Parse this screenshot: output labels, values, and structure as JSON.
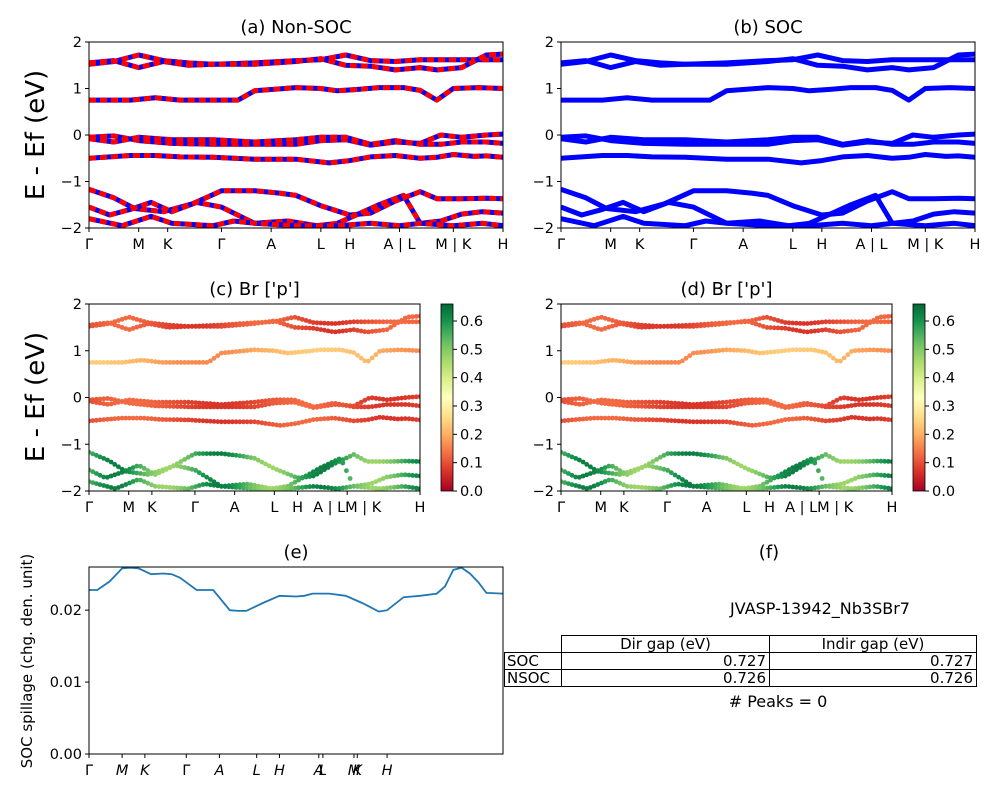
{
  "chart_data": [
    {
      "id": "a",
      "type": "line",
      "title": "(a) Non-SOC",
      "ylabel": "$E - E_f$ (eV)",
      "ylim": [
        -2,
        2
      ],
      "yticks": [
        -2,
        -1,
        0,
        1,
        2
      ],
      "kpath_labels": [
        "Γ",
        "M",
        "K",
        "Γ",
        "A",
        "L",
        "H",
        "A | L",
        "M | K",
        "H"
      ],
      "colors": {
        "up": "#0000ff",
        "down": "#ff0000"
      },
      "bands": [
        {
          "name": "b1",
          "x": [
            0,
            0.06,
            0.11,
            0.18,
            0.25,
            0.32,
            0.4,
            0.46,
            0.5,
            0.56,
            0.63,
            0.68,
            0.74,
            0.8,
            0.84,
            0.9,
            0.96,
            1.0
          ],
          "values": [
            -1.17,
            -1.35,
            -1.58,
            -1.65,
            -1.48,
            -1.2,
            -1.2,
            -1.25,
            -1.3,
            -1.52,
            -1.72,
            -1.68,
            -1.42,
            -1.22,
            -1.37,
            -1.37,
            -1.36,
            -1.37
          ]
        },
        {
          "name": "b2",
          "x": [
            0,
            0.05,
            0.1,
            0.15,
            0.2,
            0.26,
            0.32,
            0.4,
            0.48,
            0.55,
            0.6,
            0.65,
            0.7,
            0.76,
            0.8,
            0.85,
            0.9,
            0.95,
            1.0
          ],
          "values": [
            -1.55,
            -1.72,
            -1.6,
            -1.45,
            -1.65,
            -1.45,
            -1.55,
            -1.9,
            -1.85,
            -1.95,
            -1.9,
            -1.7,
            -1.5,
            -1.3,
            -1.9,
            -1.85,
            -1.7,
            -1.65,
            -1.68
          ]
        },
        {
          "name": "b3",
          "x": [
            0,
            0.08,
            0.15,
            0.2,
            0.3,
            0.35,
            0.4,
            0.5,
            0.6,
            0.68,
            0.75,
            0.8,
            0.88,
            0.95,
            1.0
          ],
          "values": [
            -1.8,
            -1.95,
            -1.75,
            -1.9,
            -1.95,
            -1.85,
            -1.9,
            -1.95,
            -1.95,
            -1.9,
            -1.95,
            -1.9,
            -1.95,
            -1.9,
            -1.95
          ]
        },
        {
          "name": "b4",
          "x": [
            0,
            0.1,
            0.16,
            0.22,
            0.3,
            0.4,
            0.5,
            0.58,
            0.63,
            0.68,
            0.74,
            0.8,
            0.84,
            0.88,
            0.93,
            0.96,
            1.0
          ],
          "values": [
            -0.5,
            -0.44,
            -0.44,
            -0.47,
            -0.48,
            -0.52,
            -0.52,
            -0.6,
            -0.55,
            -0.47,
            -0.44,
            -0.5,
            -0.48,
            -0.42,
            -0.46,
            -0.45,
            -0.48
          ]
        },
        {
          "name": "b5",
          "x": [
            0,
            0.06,
            0.12,
            0.2,
            0.3,
            0.4,
            0.5,
            0.56,
            0.62,
            0.68,
            0.74,
            0.8,
            0.85,
            0.9,
            0.96,
            1.0
          ],
          "values": [
            -0.05,
            -0.02,
            -0.12,
            -0.18,
            -0.2,
            -0.2,
            -0.2,
            -0.12,
            -0.1,
            -0.22,
            -0.15,
            -0.18,
            0.0,
            -0.05,
            0.0,
            0.02
          ]
        },
        {
          "name": "b6",
          "x": [
            0,
            0.06,
            0.12,
            0.2,
            0.3,
            0.4,
            0.5,
            0.56,
            0.62,
            0.68,
            0.74,
            0.8,
            0.85,
            0.9,
            0.96,
            1.0
          ],
          "values": [
            -0.08,
            -0.15,
            -0.05,
            -0.1,
            -0.1,
            -0.15,
            -0.1,
            -0.05,
            -0.05,
            -0.2,
            -0.12,
            -0.2,
            -0.2,
            -0.15,
            -0.15,
            -0.18
          ]
        },
        {
          "name": "b7",
          "x": [
            0,
            0.1,
            0.16,
            0.22,
            0.3,
            0.36,
            0.4,
            0.5,
            0.56,
            0.6,
            0.65,
            0.7,
            0.76,
            0.8,
            0.84,
            0.88,
            0.94,
            1.0
          ],
          "values": [
            0.75,
            0.75,
            0.8,
            0.75,
            0.75,
            0.75,
            0.95,
            1.02,
            1.0,
            0.95,
            0.98,
            1.02,
            1.02,
            0.96,
            0.75,
            1.0,
            1.02,
            1.0
          ]
        },
        {
          "name": "b8",
          "x": [
            0,
            0.06,
            0.12,
            0.18,
            0.24,
            0.3,
            0.4,
            0.5,
            0.56,
            0.62,
            0.68,
            0.74,
            0.8,
            0.84,
            0.9,
            0.96,
            1.0
          ],
          "values": [
            1.52,
            1.58,
            1.72,
            1.6,
            1.55,
            1.52,
            1.55,
            1.6,
            1.62,
            1.72,
            1.6,
            1.58,
            1.62,
            1.62,
            1.62,
            1.62,
            1.62
          ]
        },
        {
          "name": "b9",
          "x": [
            0,
            0.06,
            0.12,
            0.18,
            0.24,
            0.3,
            0.4,
            0.5,
            0.56,
            0.62,
            0.68,
            0.74,
            0.8,
            0.84,
            0.9,
            0.96,
            1.0
          ],
          "values": [
            1.55,
            1.6,
            1.45,
            1.58,
            1.5,
            1.52,
            1.52,
            1.58,
            1.64,
            1.5,
            1.48,
            1.4,
            1.45,
            1.4,
            1.45,
            1.72,
            1.74
          ]
        }
      ]
    },
    {
      "id": "b",
      "type": "line",
      "title": "(b) SOC",
      "ylim": [
        -2,
        2
      ],
      "yticks": [
        -2,
        -1,
        0,
        1,
        2
      ],
      "kpath_labels": [
        "Γ",
        "M",
        "K",
        "Γ",
        "A",
        "L",
        "H",
        "A | L",
        "M | K",
        "H"
      ],
      "colors": {
        "line": "#0000ff"
      }
    },
    {
      "id": "c",
      "type": "scatter",
      "title": "(c)  Br ['p']",
      "ylabel": "$E - E_f$ (eV)",
      "ylim": [
        -2,
        2
      ],
      "yticks": [
        -2,
        -1,
        0,
        1,
        2
      ],
      "kpath_labels": [
        "Γ",
        "M",
        "K",
        "Γ",
        "A",
        "L",
        "H",
        "A | LM | K",
        "H"
      ],
      "colorbar": {
        "colormap": "RdYlGn",
        "ticks": [
          0.0,
          0.1,
          0.2,
          0.3,
          0.4,
          0.5,
          0.6
        ],
        "range": [
          0,
          0.66
        ]
      }
    },
    {
      "id": "d",
      "type": "scatter",
      "title": "(d) Br ['p']",
      "ylim": [
        -2,
        2
      ],
      "yticks": [
        -2,
        -1,
        0,
        1,
        2
      ],
      "kpath_labels": [
        "Γ",
        "M",
        "K",
        "Γ",
        "A",
        "L",
        "H",
        "A | LM | K",
        "H"
      ],
      "colorbar": {
        "colormap": "RdYlGn",
        "ticks": [
          0.0,
          0.1,
          0.2,
          0.3,
          0.4,
          0.5,
          0.6
        ],
        "range": [
          0,
          0.66
        ]
      }
    },
    {
      "id": "e",
      "type": "line",
      "title": "(e)",
      "ylabel": "SOC spillage (chg. den. unit)",
      "ylim": [
        0,
        0.026
      ],
      "yticks": [
        0.0,
        0.01,
        0.02
      ],
      "ytick_labels": [
        "0.00",
        "0.01",
        "0.02"
      ],
      "kpath_labels": [
        "Γ",
        "M",
        "K",
        "Γ",
        "A",
        "L",
        "H",
        "A",
        "L",
        "M",
        "K",
        "H"
      ],
      "series": [
        {
          "x": [
            0,
            0.02,
            0.05,
            0.08,
            0.1,
            0.12,
            0.15,
            0.18,
            0.2,
            0.22,
            0.26,
            0.3,
            0.34,
            0.36,
            0.38,
            0.42,
            0.46,
            0.5,
            0.52,
            0.54,
            0.58,
            0.62,
            0.66,
            0.7,
            0.72,
            0.76,
            0.8,
            0.84,
            0.86,
            0.88,
            0.9,
            0.92,
            0.94,
            0.96,
            1.0
          ],
          "values": [
            0.0228,
            0.0228,
            0.024,
            0.0258,
            0.0259,
            0.0258,
            0.025,
            0.0251,
            0.025,
            0.0245,
            0.0228,
            0.0228,
            0.02,
            0.0199,
            0.0199,
            0.021,
            0.022,
            0.0219,
            0.022,
            0.0223,
            0.0223,
            0.022,
            0.021,
            0.0198,
            0.02,
            0.0218,
            0.022,
            0.0223,
            0.0233,
            0.0256,
            0.0259,
            0.0251,
            0.0239,
            0.0224,
            0.0223
          ]
        }
      ],
      "colors": {
        "line": "#1f77b4"
      }
    },
    {
      "id": "f",
      "type": "table",
      "title": "(f)",
      "subtitle": "JVASP-13942_Nb3SBr7",
      "columns": [
        "",
        "Dir gap (eV)",
        "Indir gap (eV)"
      ],
      "rows": [
        {
          "label": "SOC",
          "dir": "0.727",
          "indir": "0.727"
        },
        {
          "label": "NSOC",
          "dir": "0.726",
          "indir": "0.726"
        }
      ],
      "footer": "# Peaks = 0"
    }
  ]
}
